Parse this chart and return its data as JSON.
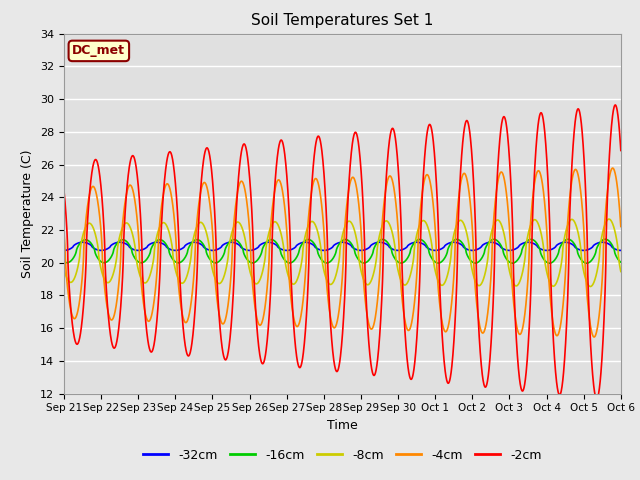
{
  "title": "Soil Temperatures Set 1",
  "xlabel": "Time",
  "ylabel": "Soil Temperature (C)",
  "ylim": [
    12,
    34
  ],
  "plot_bg_color": "#e8e8e8",
  "ax_bg_color": "#e0e0e0",
  "grid_color": "#ffffff",
  "label_box": "DC_met",
  "label_box_facecolor": "#ffffcc",
  "label_box_edgecolor": "#8B0000",
  "label_box_textcolor": "#8B0000",
  "series": [
    {
      "label": "-32cm",
      "color": "#0000ff",
      "amplitude": 0.25,
      "mean": 21.0,
      "phase": 0.0,
      "linewidth": 1.2
    },
    {
      "label": "-16cm",
      "color": "#00cc00",
      "amplitude": 0.7,
      "mean": 20.7,
      "phase": 0.08,
      "linewidth": 1.2
    },
    {
      "label": "-8cm",
      "color": "#cccc00",
      "amplitude": 1.8,
      "mean": 20.6,
      "phase": 0.18,
      "linewidth": 1.2
    },
    {
      "label": "-4cm",
      "color": "#ff8800",
      "amplitude": 4.0,
      "mean": 20.6,
      "phase": 0.28,
      "linewidth": 1.2
    },
    {
      "label": "-2cm",
      "color": "#ff0000",
      "amplitude": 5.5,
      "mean": 20.6,
      "phase": 0.35,
      "linewidth": 1.2
    }
  ],
  "xtick_labels": [
    "Sep 21",
    "Sep 22",
    "Sep 23",
    "Sep 24",
    "Sep 25",
    "Sep 26",
    "Sep 27",
    "Sep 28",
    "Sep 29",
    "Sep 30",
    "Oct 1",
    "Oct 2",
    "Oct 3",
    "Oct 4",
    "Oct 5",
    "Oct 6"
  ],
  "xtick_positions": [
    0,
    1,
    2,
    3,
    4,
    5,
    6,
    7,
    8,
    9,
    10,
    11,
    12,
    13,
    14,
    15
  ],
  "num_days": 15,
  "points_per_day": 144
}
